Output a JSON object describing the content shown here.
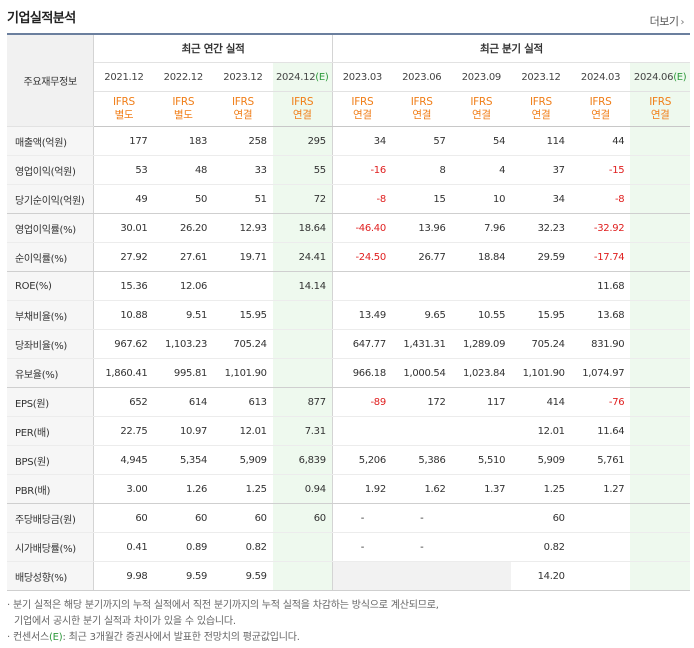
{
  "header": {
    "title": "기업실적분석",
    "more_label": "더보기",
    "more_icon": "chevron-right-icon"
  },
  "table": {
    "row_header_label": "주요재무정보",
    "groups": {
      "annual": "최근 연간 실적",
      "quarterly": "최근 분기 실적"
    },
    "periods": [
      {
        "label": "2021.12",
        "basis": [
          "IFRS",
          "별도"
        ]
      },
      {
        "label": "2022.12",
        "basis": [
          "IFRS",
          "별도"
        ]
      },
      {
        "label": "2023.12",
        "basis": [
          "IFRS",
          "연결"
        ]
      },
      {
        "label": "2024.12",
        "est": "(E)",
        "basis": [
          "IFRS",
          "연결"
        ]
      },
      {
        "label": "2023.03",
        "basis": [
          "IFRS",
          "연결"
        ]
      },
      {
        "label": "2023.06",
        "basis": [
          "IFRS",
          "연결"
        ]
      },
      {
        "label": "2023.09",
        "basis": [
          "IFRS",
          "연결"
        ]
      },
      {
        "label": "2023.12",
        "basis": [
          "IFRS",
          "연결"
        ]
      },
      {
        "label": "2024.03",
        "basis": [
          "IFRS",
          "연결"
        ]
      },
      {
        "label": "2024.06",
        "est": "(E)",
        "basis": [
          "IFRS",
          "연결"
        ]
      }
    ],
    "rows": [
      {
        "name": "매출액(억원)",
        "values": [
          "177",
          "183",
          "258",
          "295",
          "34",
          "57",
          "54",
          "114",
          "44",
          ""
        ]
      },
      {
        "name": "영업이익(억원)",
        "values": [
          "53",
          "48",
          "33",
          "55",
          "-16",
          "8",
          "4",
          "37",
          "-15",
          ""
        ]
      },
      {
        "name": "당기순이익(억원)",
        "values": [
          "49",
          "50",
          "51",
          "72",
          "-8",
          "15",
          "10",
          "34",
          "-8",
          ""
        ]
      },
      {
        "name": "영업이익률(%)",
        "values": [
          "30.01",
          "26.20",
          "12.93",
          "18.64",
          "-46.40",
          "13.96",
          "7.96",
          "32.23",
          "-32.92",
          ""
        ]
      },
      {
        "name": "순이익률(%)",
        "values": [
          "27.92",
          "27.61",
          "19.71",
          "24.41",
          "-24.50",
          "26.77",
          "18.84",
          "29.59",
          "-17.74",
          ""
        ]
      },
      {
        "name": "ROE(%)",
        "values": [
          "15.36",
          "12.06",
          "",
          "14.14",
          "",
          "",
          "",
          "",
          "11.68",
          ""
        ]
      },
      {
        "name": "부채비율(%)",
        "values": [
          "10.88",
          "9.51",
          "15.95",
          "",
          "13.49",
          "9.65",
          "10.55",
          "15.95",
          "13.68",
          ""
        ]
      },
      {
        "name": "당좌비율(%)",
        "values": [
          "967.62",
          "1,103.23",
          "705.24",
          "",
          "647.77",
          "1,431.31",
          "1,289.09",
          "705.24",
          "831.90",
          ""
        ]
      },
      {
        "name": "유보율(%)",
        "values": [
          "1,860.41",
          "995.81",
          "1,101.90",
          "",
          "966.18",
          "1,000.54",
          "1,023.84",
          "1,101.90",
          "1,074.97",
          ""
        ]
      },
      {
        "name": "EPS(원)",
        "values": [
          "652",
          "614",
          "613",
          "877",
          "-89",
          "172",
          "117",
          "414",
          "-76",
          ""
        ]
      },
      {
        "name": "PER(배)",
        "values": [
          "22.75",
          "10.97",
          "12.01",
          "7.31",
          "",
          "",
          "",
          "12.01",
          "11.64",
          ""
        ]
      },
      {
        "name": "BPS(원)",
        "values": [
          "4,945",
          "5,354",
          "5,909",
          "6,839",
          "5,206",
          "5,386",
          "5,510",
          "5,909",
          "5,761",
          ""
        ]
      },
      {
        "name": "PBR(배)",
        "values": [
          "3.00",
          "1.26",
          "1.25",
          "0.94",
          "1.92",
          "1.62",
          "1.37",
          "1.25",
          "1.27",
          ""
        ]
      },
      {
        "name": "주당배당금(원)",
        "values": [
          "60",
          "60",
          "60",
          "60",
          "-",
          "-",
          "",
          "60",
          "",
          ""
        ]
      },
      {
        "name": "시가배당률(%)",
        "values": [
          "0.41",
          "0.89",
          "0.82",
          "",
          "-",
          "-",
          "",
          "0.82",
          "",
          ""
        ]
      },
      {
        "name": "배당성향(%)",
        "values": [
          "9.98",
          "9.59",
          "9.59",
          "",
          "",
          "",
          "",
          "14.20",
          "",
          ""
        ]
      }
    ]
  },
  "notes": {
    "line1": "분기 실적은 해당 분기까지의 누적 실적에서 직전 분기까지의 누적 실적을 차감하는 방식으로 계산되므로,",
    "line2": "기업에서 공시한 분기 실적과 차이가 있을 수 있습니다.",
    "line3_prefix": "컨센서스",
    "line3_est": "(E)",
    "line3_suffix": ": 최근 3개월간 증권사에서 발표한 전망치의 평균값입니다."
  },
  "colors": {
    "ifrs": "#f07e18",
    "negative": "#e02020",
    "estimate_bg": "#eef9ee",
    "estimate_text": "#2e9a3c",
    "border_top": "#6b7f9e"
  }
}
